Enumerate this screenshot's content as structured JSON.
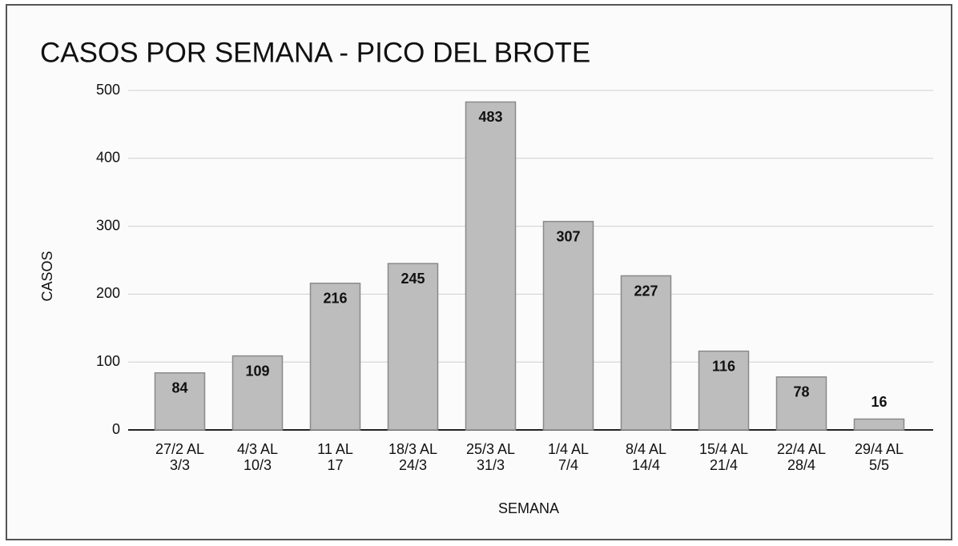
{
  "chart_data": {
    "type": "bar",
    "title": "CASOS POR SEMANA - PICO DEL BROTE",
    "x_label": "SEMANA",
    "y_label": "CASOS",
    "categories": [
      [
        "27/2 AL",
        "3/3"
      ],
      [
        "4/3 AL",
        "10/3"
      ],
      [
        "11 AL",
        "17"
      ],
      [
        "18/3 AL",
        "24/3"
      ],
      [
        "25/3 AL",
        "31/3"
      ],
      [
        "1/4 AL",
        "7/4"
      ],
      [
        "8/4 AL",
        "14/4"
      ],
      [
        "15/4 AL",
        "21/4"
      ],
      [
        "22/4 AL",
        "28/4"
      ],
      [
        "29/4 AL",
        "5/5"
      ]
    ],
    "values": [
      84,
      109,
      216,
      245,
      483,
      307,
      227,
      116,
      78,
      16
    ],
    "color": "#bdbdbd",
    "ylim": [
      0,
      500
    ],
    "yticks": [
      0,
      100,
      200,
      300,
      400,
      500
    ],
    "grid": true
  }
}
